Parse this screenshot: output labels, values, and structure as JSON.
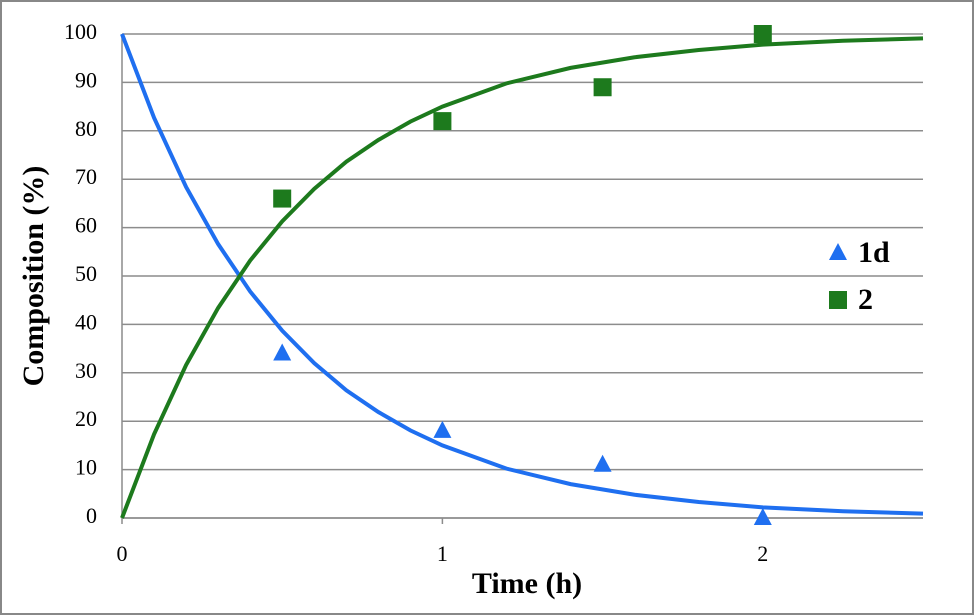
{
  "chart_data": {
    "type": "scatter",
    "x_label": "Time (h)",
    "y_label": "Composition (%)",
    "xlim": [
      0,
      2.5
    ],
    "xticks": [
      0,
      1,
      2
    ],
    "ylim": [
      0,
      100
    ],
    "yticks": [
      0,
      10,
      20,
      30,
      40,
      50,
      60,
      70,
      80,
      90,
      100
    ],
    "grid": true,
    "legend": "right",
    "series": [
      {
        "name": "1d",
        "color": "#1f6ff0",
        "marker": "triangle",
        "x": [
          0.5,
          1,
          1.5,
          2
        ],
        "values": [
          34,
          18,
          11,
          0
        ],
        "fit": {
          "x": [
            0,
            0.1,
            0.2,
            0.3,
            0.4,
            0.5,
            0.6,
            0.7,
            0.8,
            0.9,
            1.0,
            1.2,
            1.4,
            1.6,
            1.8,
            2.0,
            2.25,
            2.5
          ],
          "values": [
            100,
            82.7,
            68.4,
            56.6,
            46.8,
            38.7,
            32.0,
            26.4,
            21.9,
            18.1,
            15.0,
            10.2,
            7.0,
            4.8,
            3.3,
            2.2,
            1.4,
            0.9
          ]
        }
      },
      {
        "name": "2",
        "color": "#1d7a1d",
        "marker": "square",
        "x": [
          0.5,
          1,
          1.5,
          2
        ],
        "values": [
          66,
          82,
          89,
          100
        ],
        "fit": {
          "x": [
            0,
            0.1,
            0.2,
            0.3,
            0.4,
            0.5,
            0.6,
            0.7,
            0.8,
            0.9,
            1.0,
            1.2,
            1.4,
            1.6,
            1.8,
            2.0,
            2.25,
            2.5
          ],
          "values": [
            0,
            17.3,
            31.6,
            43.4,
            53.2,
            61.3,
            68.0,
            73.6,
            78.1,
            81.9,
            85.0,
            89.8,
            93.0,
            95.2,
            96.7,
            97.8,
            98.6,
            99.1
          ]
        }
      }
    ]
  }
}
